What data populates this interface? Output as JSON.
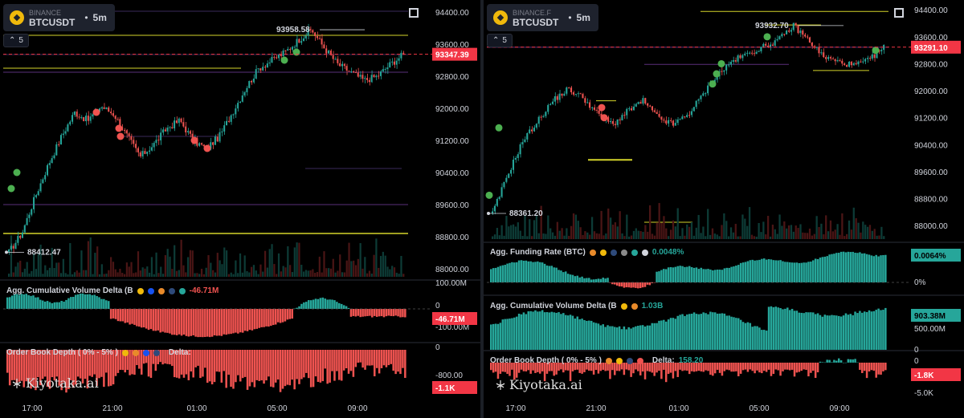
{
  "panels": [
    {
      "id": "left",
      "exchange": "BINANCE",
      "pair": "BTCUSDT",
      "timeframe": "5m",
      "indicator_count": "5",
      "price_axis_labels": [
        "94400.00",
        "93600.00",
        "92800.00",
        "92000.00",
        "91200.00",
        "90400.00",
        "89600.00",
        "88800.00",
        "88000.00"
      ],
      "current_price": "93347.39",
      "high_label": "93958.58",
      "low_label": "88412.47",
      "cvd": {
        "title": "Agg. Cumulative Volume Delta (B",
        "value": "-46.71M",
        "axis_labels": [
          "100.00M",
          "0",
          "-100.00M"
        ],
        "current": "-46.71M"
      },
      "obd": {
        "title": "Order Book Depth ( 0% - 5% )",
        "delta_label": "Delta:",
        "axis_labels": [
          "0",
          "-800.00"
        ],
        "current": "-1.1K"
      },
      "time_labels": [
        "17:00",
        "21:00",
        "01:00",
        "05:00",
        "09:00"
      ],
      "watermark": "Kiyotaka.ai"
    },
    {
      "id": "right",
      "exchange": "BINANCE.F",
      "pair": "BTCUSDT",
      "timeframe": "5m",
      "indicator_count": "5",
      "price_axis_labels": [
        "94400.00",
        "93600.00",
        "92800.00",
        "92000.00",
        "91200.00",
        "90400.00",
        "89600.00",
        "88800.00",
        "88000.00"
      ],
      "current_price": "93291.10",
      "high_label": "93932.70",
      "low_label": "88361.20",
      "funding": {
        "title": "Agg. Funding Rate (BTC)",
        "value": "0.0048%",
        "axis_labels": [
          "0%"
        ],
        "current": "0.0064%"
      },
      "cvd": {
        "title": "Agg. Cumulative Volume Delta (B",
        "value": "1.03B",
        "axis_labels": [
          "500.00M",
          "0"
        ],
        "current": "903.38M"
      },
      "obd": {
        "title": "Order Book Depth ( 0% - 5% )",
        "delta_label": "Delta:",
        "delta_value": "158.20",
        "axis_labels": [
          "0",
          "-5.0K"
        ],
        "current": "-1.8K"
      },
      "time_labels": [
        "17:00",
        "21:00",
        "01:00",
        "05:00",
        "09:00"
      ],
      "watermark": "Kiyotaka.ai"
    }
  ],
  "colors": {
    "up": "#26a69a",
    "down": "#ef5350",
    "level_yellow": "#d4d42a",
    "level_purple": "#5b2c8a",
    "price_tag": "#f23645",
    "background": "#000000"
  },
  "chart_data": [
    {
      "type": "candlestick",
      "title": "BINANCE BTCUSDT 5m",
      "ylim": [
        87800,
        94500
      ],
      "x_ticks": [
        "17:00",
        "21:00",
        "01:00",
        "05:00",
        "09:00"
      ],
      "close_path_keypoints": [
        88412,
        88900,
        89800,
        90600,
        91300,
        91900,
        91700,
        92050,
        91850,
        91300,
        90800,
        91100,
        91500,
        91700,
        91200,
        91000,
        91300,
        91900,
        92500,
        93000,
        93200,
        93400,
        93700,
        93958,
        93500,
        93100,
        92900,
        92700,
        92800,
        93100,
        93347
      ],
      "current_price": 93347.39,
      "high": 93958.58,
      "low": 88412.47,
      "cvd_current": "-46.71M",
      "order_book_delta_current": "-1.1K"
    },
    {
      "type": "candlestick",
      "title": "BINANCE.F BTCUSDT 5m",
      "ylim": [
        87600,
        94500
      ],
      "x_ticks": [
        "17:00",
        "21:00",
        "01:00",
        "05:00",
        "09:00"
      ],
      "close_path_keypoints": [
        88361,
        89500,
        90500,
        91100,
        91700,
        92050,
        91800,
        91300,
        91000,
        91400,
        91700,
        91200,
        91000,
        91300,
        91900,
        92500,
        92900,
        93100,
        93300,
        93500,
        93932,
        93500,
        93000,
        92850,
        92750,
        92900,
        93291
      ],
      "current_price": 93291.1,
      "high": 93932.7,
      "low": 88361.2,
      "funding_current": "0.0064%",
      "funding_value": "0.0048%",
      "cvd_current": "903.38M",
      "cvd_value": "1.03B",
      "order_book_delta": "158.20",
      "order_book_delta_current": "-1.8K"
    }
  ]
}
